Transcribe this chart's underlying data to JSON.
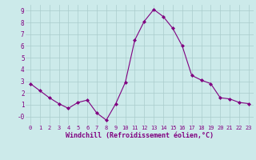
{
  "x": [
    0,
    1,
    2,
    3,
    4,
    5,
    6,
    7,
    8,
    9,
    10,
    11,
    12,
    13,
    14,
    15,
    16,
    17,
    18,
    19,
    20,
    21,
    22,
    23
  ],
  "y": [
    2.8,
    2.2,
    1.6,
    1.1,
    0.7,
    1.2,
    1.4,
    0.3,
    -0.3,
    1.1,
    2.9,
    6.5,
    8.1,
    9.1,
    8.5,
    7.5,
    6.0,
    3.5,
    3.1,
    2.8,
    1.6,
    1.5,
    1.2,
    1.1
  ],
  "line_color": "#800080",
  "marker": "D",
  "marker_size": 2,
  "bg_color": "#cceaea",
  "grid_color": "#aacccc",
  "xlabel": "Windchill (Refroidissement éolien,°C)",
  "xlabel_color": "#800080",
  "tick_color": "#800080",
  "ylim": [
    -0.7,
    9.5
  ],
  "xlim": [
    -0.5,
    23.5
  ],
  "yticks": [
    0,
    1,
    2,
    3,
    4,
    5,
    6,
    7,
    8,
    9
  ],
  "ytick_labels": [
    "-0",
    "1",
    "2",
    "3",
    "4",
    "5",
    "6",
    "7",
    "8",
    "9"
  ],
  "xticks": [
    0,
    1,
    2,
    3,
    4,
    5,
    6,
    7,
    8,
    9,
    10,
    11,
    12,
    13,
    14,
    15,
    16,
    17,
    18,
    19,
    20,
    21,
    22,
    23
  ],
  "xtick_fontsize": 5.0,
  "ytick_fontsize": 5.5,
  "xlabel_fontsize": 6.0,
  "linewidth": 0.8
}
